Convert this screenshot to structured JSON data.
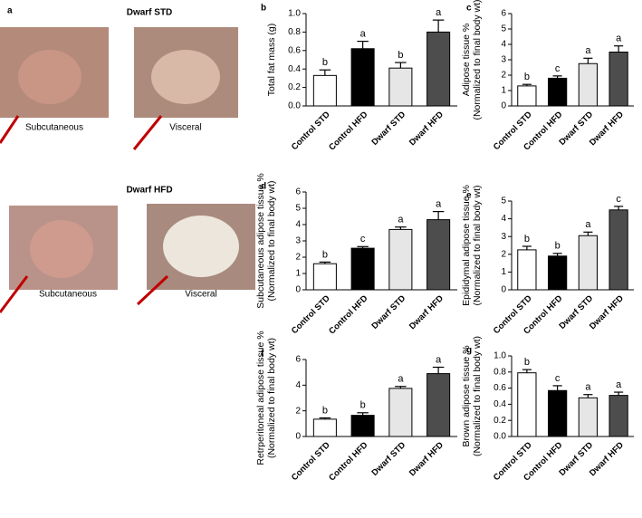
{
  "photo_panel": {
    "panel": "a",
    "groups": [
      {
        "title": "Dwarf STD",
        "labels": [
          "Subcutaneous",
          "Visceral"
        ]
      },
      {
        "title": "Dwarf HFD",
        "labels": [
          "Subcutaneous",
          "Visceral"
        ]
      }
    ]
  },
  "chart_data": [
    {
      "type": "bar",
      "panel": "b",
      "ylabel": [
        "Total fat mass (g)"
      ],
      "categories": [
        "Control STD",
        "Control HFD",
        "Dwarf STD",
        "Dwarf HFD"
      ],
      "values": [
        0.33,
        0.62,
        0.41,
        0.8
      ],
      "errors": [
        0.06,
        0.08,
        0.06,
        0.13
      ],
      "annotations": [
        "b",
        "a",
        "b",
        "a"
      ],
      "colors": [
        "#ffffff",
        "#000000",
        "#e6e6e6",
        "#4d4d4d"
      ],
      "ylim": [
        0,
        1
      ],
      "yticks": [
        {
          "value": 0,
          "label": "0.0"
        },
        0.2,
        0.4,
        0.6,
        0.8,
        {
          "value": 1,
          "label": "1.0"
        }
      ]
    },
    {
      "type": "bar",
      "panel": "c",
      "ylabel": [
        "Adipose tissue %",
        "(Normalized to final body wt)"
      ],
      "categories": [
        "Control STD",
        "Control HFD",
        "Dwarf STD",
        "Dwarf HFD"
      ],
      "values": [
        1.3,
        1.8,
        2.75,
        3.5
      ],
      "errors": [
        0.1,
        0.15,
        0.35,
        0.4
      ],
      "annotations": [
        "b",
        "c",
        "a",
        "a"
      ],
      "colors": [
        "#ffffff",
        "#000000",
        "#e6e6e6",
        "#4d4d4d"
      ],
      "ylim": [
        0,
        6
      ],
      "yticks": [
        0,
        1,
        2,
        3,
        4,
        5,
        6
      ]
    },
    {
      "type": "bar",
      "panel": "d",
      "ylabel": [
        "Subcutaneous adipose tissue %",
        "(Normalized to final body wt)"
      ],
      "categories": [
        "Control STD",
        "Control HFD",
        "Dwarf STD",
        "Dwarf HFD"
      ],
      "values": [
        1.6,
        2.55,
        3.7,
        4.3
      ],
      "errors": [
        0.1,
        0.1,
        0.15,
        0.5
      ],
      "annotations": [
        "b",
        "c",
        "a",
        "a"
      ],
      "colors": [
        "#ffffff",
        "#000000",
        "#e6e6e6",
        "#4d4d4d"
      ],
      "ylim": [
        0,
        6
      ],
      "yticks": [
        0,
        1,
        2,
        3,
        4,
        5,
        6
      ]
    },
    {
      "type": "bar",
      "panel": "e",
      "ylabel": [
        "Epididymal adipose tissue %",
        "(Normalized to final body wt)"
      ],
      "categories": [
        "Control STD",
        "Control HFD",
        "Dwarf STD",
        "Dwarf HFD"
      ],
      "values": [
        2.25,
        1.9,
        3.05,
        4.5
      ],
      "errors": [
        0.2,
        0.15,
        0.2,
        0.2
      ],
      "annotations": [
        "b",
        "b",
        "a",
        "c"
      ],
      "colors": [
        "#ffffff",
        "#000000",
        "#e6e6e6",
        "#4d4d4d"
      ],
      "ylim": [
        0,
        5
      ],
      "yticks": [
        0,
        1,
        2,
        3,
        4,
        5
      ]
    },
    {
      "type": "bar",
      "panel": "f",
      "ylabel": [
        "Retrperitoneal adipose tissue %",
        "(Normalized to final body wt)"
      ],
      "categories": [
        "Control STD",
        "Control HFD",
        "Dwarf STD",
        "Dwarf HFD"
      ],
      "values": [
        1.35,
        1.65,
        3.75,
        4.9
      ],
      "errors": [
        0.1,
        0.2,
        0.15,
        0.5
      ],
      "annotations": [
        "b",
        "b",
        "a",
        "a"
      ],
      "colors": [
        "#ffffff",
        "#000000",
        "#e6e6e6",
        "#4d4d4d"
      ],
      "ylim": [
        0,
        6
      ],
      "yticks": [
        0,
        2,
        4,
        6
      ]
    },
    {
      "type": "bar",
      "panel": "g",
      "ylabel": [
        "Brown adipose tissue %",
        "(Normalized to final body wt)"
      ],
      "categories": [
        "Control STD",
        "Control HFD",
        "Dwarf STD",
        "Dwarf HFD"
      ],
      "values": [
        0.79,
        0.57,
        0.48,
        0.51
      ],
      "errors": [
        0.04,
        0.06,
        0.04,
        0.04
      ],
      "annotations": [
        "b",
        "c",
        "a",
        "a"
      ],
      "colors": [
        "#ffffff",
        "#000000",
        "#e6e6e6",
        "#4d4d4d"
      ],
      "ylim": [
        0,
        1
      ],
      "yticks": [
        {
          "value": 0,
          "label": "0.0"
        },
        0.2,
        0.4,
        0.6,
        0.8,
        {
          "value": 1,
          "label": "1.0"
        }
      ]
    }
  ]
}
